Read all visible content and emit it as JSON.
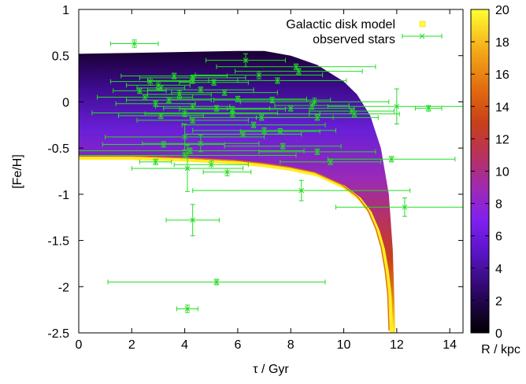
{
  "chart_data": {
    "type": "scatter",
    "xlabel": "τ / Gyr",
    "ylabel": "[Fe/H]",
    "colorbar_label": "R / kpc",
    "xlim": [
      0,
      14.5
    ],
    "ylim": [
      -2.5,
      1
    ],
    "x_ticks": [
      "0",
      "2",
      "4",
      "6",
      "8",
      "10",
      "12",
      "14"
    ],
    "y_ticks": [
      "1",
      "0.5",
      "0",
      "-0.5",
      "-1",
      "-1.5",
      "-2",
      "-2.5"
    ],
    "colorbar_ticks": [
      "0",
      "2",
      "4",
      "6",
      "8",
      "10",
      "12",
      "14",
      "16",
      "18",
      "20"
    ],
    "colorbar_range": [
      0,
      20
    ],
    "legend_position": "top-right",
    "grid": false,
    "series": [
      {
        "name": "Galactic disk model",
        "kind": "density-band",
        "color_map": "R / kpc",
        "upper_envelope": [
          [
            0,
            0.52
          ],
          [
            2,
            0.53
          ],
          [
            4,
            0.54
          ],
          [
            6,
            0.55
          ],
          [
            7,
            0.55
          ],
          [
            8,
            0.5
          ],
          [
            9,
            0.4
          ],
          [
            10,
            0.22
          ],
          [
            10.5,
            0.08
          ],
          [
            11,
            -0.15
          ],
          [
            11.4,
            -0.5
          ],
          [
            11.7,
            -1.0
          ],
          [
            11.85,
            -1.6
          ],
          [
            11.95,
            -2.5
          ]
        ],
        "lower_envelope": [
          [
            0,
            -0.61
          ],
          [
            2,
            -0.61
          ],
          [
            4,
            -0.63
          ],
          [
            6,
            -0.66
          ],
          [
            7,
            -0.69
          ],
          [
            8,
            -0.73
          ],
          [
            9,
            -0.79
          ],
          [
            10,
            -0.92
          ],
          [
            10.6,
            -1.05
          ],
          [
            11,
            -1.2
          ],
          [
            11.3,
            -1.4
          ],
          [
            11.5,
            -1.6
          ],
          [
            11.65,
            -1.85
          ],
          [
            11.75,
            -2.1
          ],
          [
            11.8,
            -2.5
          ]
        ]
      },
      {
        "name": "observed stars",
        "color": "#22dd22",
        "points": [
          {
            "x": 2.1,
            "y": 0.63,
            "xerr": 0.9,
            "yerr": 0.04
          },
          {
            "x": 6.3,
            "y": 0.45,
            "xerr": 1.5,
            "yerr": 0.07
          },
          {
            "x": 8.2,
            "y": 0.38,
            "xerr": 3.0,
            "yerr": 0.03
          },
          {
            "x": 8.3,
            "y": 0.33,
            "xerr": 2.4,
            "yerr": 0.03
          },
          {
            "x": 3.6,
            "y": 0.28,
            "xerr": 2.0,
            "yerr": 0.03
          },
          {
            "x": 6.8,
            "y": 0.29,
            "xerr": 2.4,
            "yerr": 0.04
          },
          {
            "x": 4.3,
            "y": 0.26,
            "xerr": 2.0,
            "yerr": 0.03
          },
          {
            "x": 4.3,
            "y": 0.23,
            "xerr": 1.7,
            "yerr": 0.03
          },
          {
            "x": 2.7,
            "y": 0.22,
            "xerr": 1.5,
            "yerr": 0.04
          },
          {
            "x": 7.5,
            "y": 0.23,
            "xerr": 2.6,
            "yerr": 0.03
          },
          {
            "x": 5.1,
            "y": 0.21,
            "xerr": 1.3,
            "yerr": 0.03
          },
          {
            "x": 3.0,
            "y": 0.18,
            "xerr": 1.2,
            "yerr": 0.04
          },
          {
            "x": 3.1,
            "y": 0.15,
            "xerr": 0.9,
            "yerr": 0.03
          },
          {
            "x": 4.6,
            "y": 0.13,
            "xerr": 2.0,
            "yerr": 0.03
          },
          {
            "x": 5.5,
            "y": 0.1,
            "xerr": 2.0,
            "yerr": 0.03
          },
          {
            "x": 2.3,
            "y": 0.12,
            "xerr": 1.0,
            "yerr": 0.03
          },
          {
            "x": 3.8,
            "y": 0.08,
            "xerr": 1.2,
            "yerr": 0.04
          },
          {
            "x": 2.5,
            "y": 0.05,
            "xerr": 1.8,
            "yerr": 0.03
          },
          {
            "x": 3.4,
            "y": 0.02,
            "xerr": 1.6,
            "yerr": 0.03
          },
          {
            "x": 6.0,
            "y": 0.03,
            "xerr": 2.6,
            "yerr": 0.03
          },
          {
            "x": 7.3,
            "y": 0.02,
            "xerr": 2.2,
            "yerr": 0.03
          },
          {
            "x": 8.9,
            "y": 0.0,
            "xerr": 2.8,
            "yerr": 0.04
          },
          {
            "x": 2.9,
            "y": -0.02,
            "xerr": 1.5,
            "yerr": 0.03
          },
          {
            "x": 4.3,
            "y": -0.05,
            "xerr": 1.4,
            "yerr": 0.03
          },
          {
            "x": 5.2,
            "y": -0.07,
            "xerr": 2.0,
            "yerr": 0.03
          },
          {
            "x": 5.8,
            "y": -0.08,
            "xerr": 2.0,
            "yerr": 0.03
          },
          {
            "x": 8.0,
            "y": -0.07,
            "xerr": 2.4,
            "yerr": 0.03
          },
          {
            "x": 8.8,
            "y": -0.04,
            "xerr": 1.4,
            "yerr": 0.04
          },
          {
            "x": 12.0,
            "y": -0.05,
            "xerr": 2.6,
            "yerr": 0.19
          },
          {
            "x": 13.2,
            "y": -0.07,
            "xerr": 0.5,
            "yerr": 0.03
          },
          {
            "x": 4.0,
            "y": -0.12,
            "xerr": 3.5,
            "yerr": 0.04
          },
          {
            "x": 5.8,
            "y": -0.13,
            "xerr": 3.3,
            "yerr": 0.03
          },
          {
            "x": 3.1,
            "y": -0.15,
            "xerr": 1.6,
            "yerr": 0.03
          },
          {
            "x": 6.9,
            "y": -0.17,
            "xerr": 2.7,
            "yerr": 0.03
          },
          {
            "x": 9.0,
            "y": -0.17,
            "xerr": 2.3,
            "yerr": 0.03
          },
          {
            "x": 10.3,
            "y": -0.1,
            "xerr": 1.6,
            "yerr": 0.03
          },
          {
            "x": 10.4,
            "y": -0.13,
            "xerr": 1.7,
            "yerr": 0.03
          },
          {
            "x": 4.3,
            "y": -0.2,
            "xerr": 2.1,
            "yerr": 0.03
          },
          {
            "x": 6.6,
            "y": -0.25,
            "xerr": 2.7,
            "yerr": 0.03
          },
          {
            "x": 7.0,
            "y": -0.31,
            "xerr": 2.7,
            "yerr": 0.03
          },
          {
            "x": 7.6,
            "y": -0.32,
            "xerr": 1.5,
            "yerr": 0.03
          },
          {
            "x": 6.2,
            "y": -0.35,
            "xerr": 2.2,
            "yerr": 0.03
          },
          {
            "x": 4.0,
            "y": -0.38,
            "xerr": 3.0,
            "yerr": 0.14
          },
          {
            "x": 3.2,
            "y": -0.46,
            "xerr": 2.3,
            "yerr": 0.03
          },
          {
            "x": 4.6,
            "y": -0.45,
            "xerr": 2.2,
            "yerr": 0.09
          },
          {
            "x": 7.7,
            "y": -0.48,
            "xerr": 2.2,
            "yerr": 0.03
          },
          {
            "x": 4.2,
            "y": -0.53,
            "xerr": 4.3,
            "yerr": 0.03
          },
          {
            "x": 9.0,
            "y": -0.54,
            "xerr": 2.2,
            "yerr": 0.03
          },
          {
            "x": 4.0,
            "y": -0.58,
            "xerr": 4.2,
            "yerr": 0.03
          },
          {
            "x": 11.8,
            "y": -0.62,
            "xerr": 2.4,
            "yerr": 0.03
          },
          {
            "x": 2.9,
            "y": -0.65,
            "xerr": 0.6,
            "yerr": 0.03
          },
          {
            "x": 9.5,
            "y": -0.65,
            "xerr": 1.9,
            "yerr": 0.03
          },
          {
            "x": 5.0,
            "y": -0.68,
            "xerr": 1.4,
            "yerr": 0.04
          },
          {
            "x": 4.1,
            "y": -0.72,
            "xerr": 2.1,
            "yerr": 0.25
          },
          {
            "x": 5.6,
            "y": -0.76,
            "xerr": 0.9,
            "yerr": 0.04
          },
          {
            "x": 8.4,
            "y": -0.96,
            "xerr": 4.1,
            "yerr": 0.11
          },
          {
            "x": 12.3,
            "y": -1.14,
            "xerr": 2.6,
            "yerr": 0.1
          },
          {
            "x": 4.3,
            "y": -1.28,
            "xerr": 1.0,
            "yerr": 0.17
          },
          {
            "x": 5.2,
            "y": -1.95,
            "xerr": 4.1,
            "yerr": 0.03
          },
          {
            "x": 4.1,
            "y": -2.24,
            "xerr": 0.4,
            "yerr": 0.04
          }
        ]
      }
    ]
  }
}
